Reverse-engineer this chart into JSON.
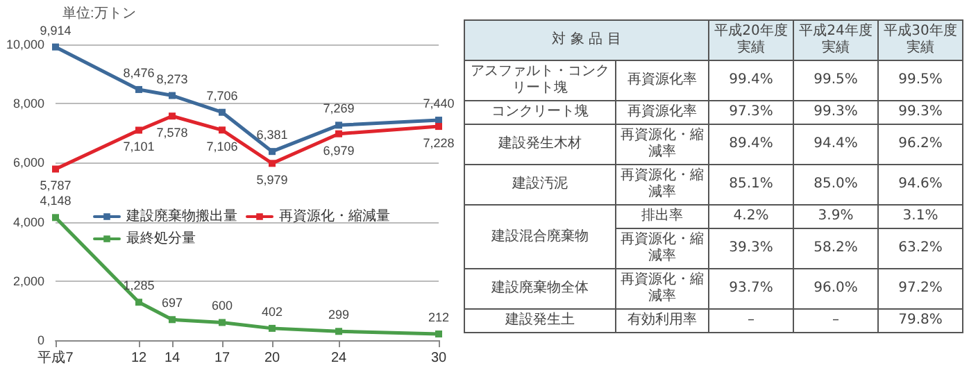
{
  "chart_data": [
    {
      "type": "line",
      "ylabel": "単位:万トン",
      "x": [
        7,
        12,
        14,
        17,
        20,
        24,
        30
      ],
      "xlim": [
        7,
        30
      ],
      "xticks": [
        {
          "value": 7,
          "label": "平成7"
        },
        12,
        14,
        17,
        20,
        24,
        30
      ],
      "ylim": [
        0,
        10000
      ],
      "yticks": [
        0,
        {
          "value": 2000,
          "label": "2,000"
        },
        {
          "value": 4000,
          "label": "4,000"
        },
        {
          "value": 6000,
          "label": "6,000"
        },
        {
          "value": 8000,
          "label": "8,000"
        },
        {
          "value": 10000,
          "label": "10,000"
        }
      ],
      "grid": "y",
      "legend": "right",
      "marker": "square",
      "line_style": "solid",
      "series": [
        {
          "name": "建設廃棄物搬出量",
          "color": "#3d6a9a",
          "values": [
            9914,
            8476,
            8273,
            7706,
            6381,
            7269,
            7440
          ],
          "value_labels": [
            "9,914",
            "8,476",
            "8,273",
            "7,706",
            "6,381",
            "7,269",
            "7,440"
          ]
        },
        {
          "name": "再資源化・縮減量",
          "color": "#e0242c",
          "values": [
            5787,
            7101,
            7578,
            7106,
            5979,
            6979,
            7228
          ],
          "value_labels": [
            "5,787",
            "7,101",
            "7,578",
            "7,106",
            "5,979",
            "6,979",
            "7,228"
          ]
        },
        {
          "name": "最終処分量",
          "color": "#4a9e4a",
          "values": [
            4148,
            1285,
            697,
            600,
            402,
            299,
            212
          ],
          "value_labels": [
            "4,148",
            "1,285",
            "697",
            "600",
            "402",
            "299",
            "212"
          ]
        }
      ]
    },
    {
      "type": "other",
      "cell_labels": [
        [
          "対 象 品 目",
          null,
          "平成20年度実績",
          "平成24年度実績",
          "平成30年度実績"
        ],
        [
          "アスファルト・コンクリート塊",
          "再資源化率",
          "99.4%",
          "99.5%",
          "99.5%"
        ],
        [
          "コンクリート塊",
          "再資源化率",
          "97.3%",
          "99.3%",
          "99.3%"
        ],
        [
          "建設発生木材",
          "再資源化・縮減率",
          "89.4%",
          "94.4%",
          "96.2%"
        ],
        [
          "建設汚泥",
          "再資源化・縮減率",
          "85.1%",
          "85.0%",
          "94.6%"
        ],
        [
          "建設混合廃棄物",
          "排出率",
          "4.2%",
          "3.9%",
          "3.1%"
        ],
        [
          null,
          "再資源化・縮減率",
          "39.3%",
          "58.2%",
          "63.2%"
        ],
        [
          "建設廃棄物全体",
          "再資源化・縮減率",
          "93.7%",
          "96.0%",
          "97.2%"
        ],
        [
          "建設発生土",
          "有効利用率",
          "–",
          "–",
          "79.8%"
        ]
      ]
    }
  ]
}
